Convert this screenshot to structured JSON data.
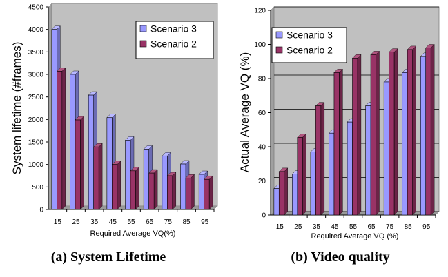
{
  "chart_data": [
    {
      "type": "bar",
      "caption": "(a) System Lifetime",
      "xlabel": "Required Average VQ(%)",
      "ylabel": "System lifetime (#frames)",
      "categories": [
        "15",
        "25",
        "35",
        "45",
        "55",
        "65",
        "75",
        "85",
        "95"
      ],
      "ylim": [
        0,
        4500
      ],
      "yticks": [
        "0",
        "500",
        "1000",
        "1500",
        "2000",
        "2500",
        "3000",
        "3500",
        "4000",
        "4500"
      ],
      "grid": false,
      "plot_background": "#c0c0c0",
      "legend_position": "top-right",
      "series": [
        {
          "name": "Scenario 3",
          "color": "#9999ff",
          "values": [
            4000,
            3000,
            2540,
            2040,
            1540,
            1340,
            1190,
            1010,
            780
          ]
        },
        {
          "name": "Scenario 2",
          "color": "#993366",
          "values": [
            3070,
            1990,
            1390,
            1000,
            860,
            810,
            750,
            700,
            670
          ]
        }
      ]
    },
    {
      "type": "bar",
      "caption": "(b) Video quality",
      "xlabel": "Required Average VQ (%)",
      "ylabel": "Actual Average VQ (%)",
      "categories": [
        "15",
        "25",
        "35",
        "45",
        "55",
        "65",
        "75",
        "85",
        "95"
      ],
      "ylim": [
        0,
        120
      ],
      "yticks": [
        "0",
        "20",
        "40",
        "60",
        "80",
        "100",
        "120"
      ],
      "grid": true,
      "plot_background": "#c0c0c0",
      "legend_position": "top-left",
      "series": [
        {
          "name": "Scenario 3",
          "color": "#9999ff",
          "values": [
            15.5,
            24,
            37,
            48,
            54.5,
            64,
            78,
            83.5,
            93
          ]
        },
        {
          "name": "Scenario 2",
          "color": "#993366",
          "values": [
            25.5,
            45.5,
            64,
            83.5,
            92,
            94,
            95.5,
            97,
            98
          ]
        }
      ]
    }
  ]
}
